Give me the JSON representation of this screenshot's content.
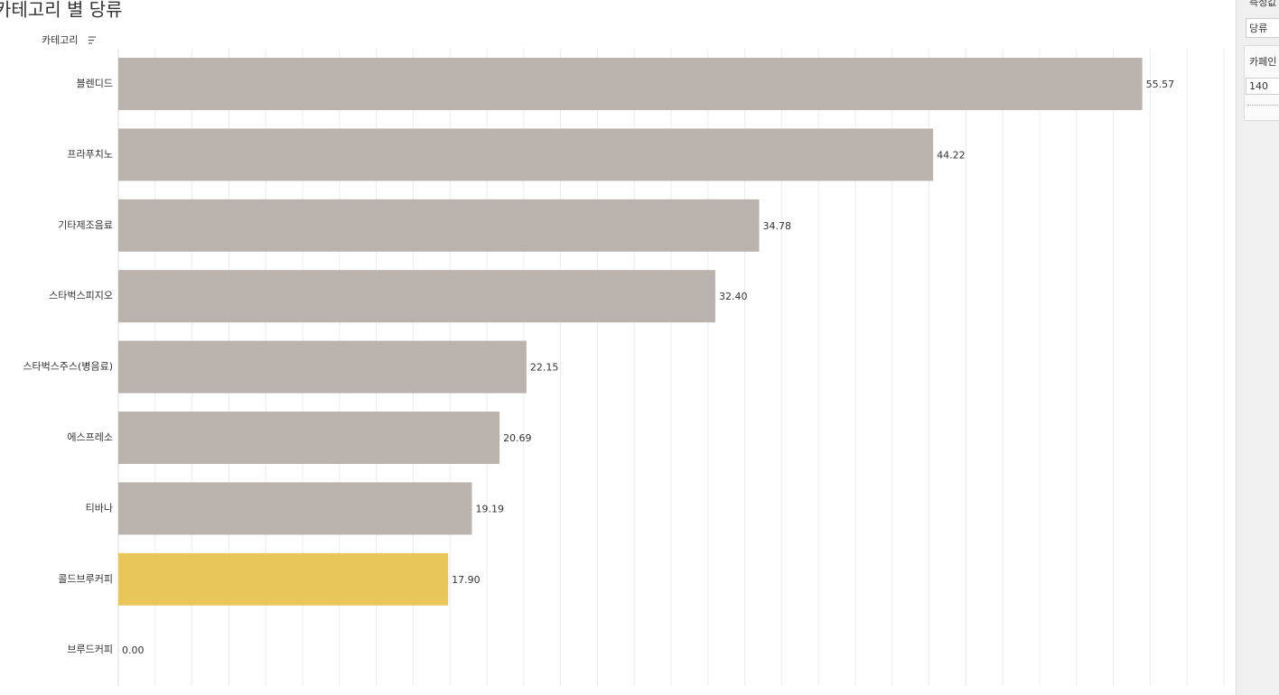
{
  "chart_data": {
    "type": "bar",
    "orientation": "horizontal",
    "title": "카테고리 별 당류",
    "axis_header": "카테고리",
    "categories": [
      "블렌디드",
      "프라푸치노",
      "기타제조음료",
      "스타벅스피지오",
      "스타벅스주스(병음료)",
      "에스프레소",
      "티바나",
      "콜드브루커피",
      "브루드커피"
    ],
    "values": [
      55.57,
      44.22,
      34.78,
      32.4,
      22.15,
      20.69,
      19.19,
      17.9,
      0
    ],
    "value_labels": [
      "55.57",
      "44.22",
      "34.78",
      "32.40",
      "22.15",
      "20.69",
      "19.19",
      "17.90",
      "0.00"
    ],
    "colors": [
      "#bab2ad",
      "#bab2ad",
      "#bab2ad",
      "#bab2ad",
      "#bab2ad",
      "#bab2ad",
      "#bab2ad",
      "#e8c65a",
      "#bab2ad"
    ],
    "xlim": [
      0,
      60
    ],
    "xticks": [
      0,
      2,
      4,
      6,
      8,
      10,
      12,
      14,
      16,
      18,
      20,
      22,
      24,
      26,
      28,
      30,
      32,
      34,
      36,
      38,
      40,
      42,
      44,
      46,
      48,
      50,
      52,
      54,
      56,
      58,
      60
    ],
    "grid": true
  },
  "panel": {
    "measure_title": "측정값",
    "measure_value": "당류",
    "caffeine_title": "카페인",
    "caffeine_value": "140"
  }
}
